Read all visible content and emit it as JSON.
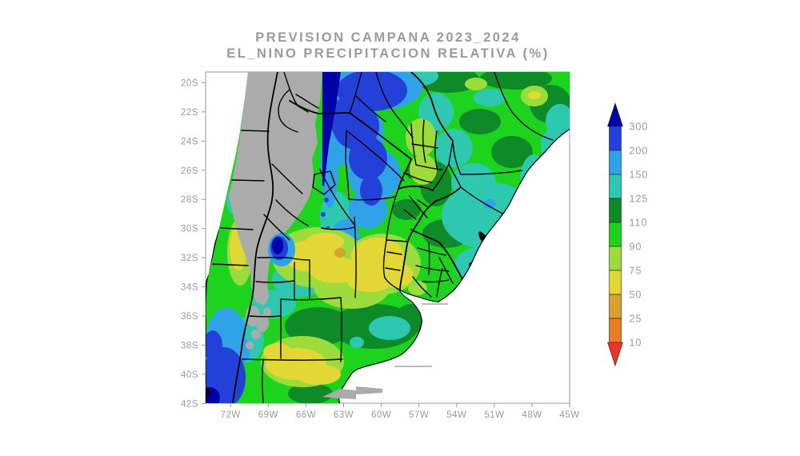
{
  "title": {
    "line1": "PREVISION CAMPANA 2023_2024",
    "line2": "EL_NINO PRECIPITACION RELATIVA (%)"
  },
  "axes": {
    "x_ticks": [
      "72W",
      "69W",
      "66W",
      "63W",
      "60W",
      "57W",
      "54W",
      "51W",
      "48W",
      "45W"
    ],
    "y_ticks": [
      "20S",
      "22S",
      "24S",
      "26S",
      "28S",
      "30S",
      "32S",
      "34S",
      "36S",
      "38S",
      "40S",
      "42S"
    ]
  },
  "colorbar": {
    "unit": "%",
    "labels": [
      "300",
      "200",
      "150",
      "125",
      "110",
      "90",
      "75",
      "50",
      "25",
      "10"
    ],
    "arrow_top_color": "#0000A8",
    "segment_colors": [
      "#2341D9",
      "#30A2EA",
      "#2EC8B0",
      "#0F8A28",
      "#1DD31D",
      "#9BDB3B",
      "#E2D735",
      "#D9A02B",
      "#EC7C22"
    ],
    "arrow_bottom_color": "#E9352A"
  },
  "palette": {
    "navy": "#0000A8",
    "royal": "#2341D9",
    "lightblue": "#30A2EA",
    "cyan": "#2EC8B0",
    "darkgreen": "#0F8A28",
    "green": "#1DD31D",
    "lightgreen": "#9BDB3B",
    "yellow": "#E2D735",
    "mustard": "#D9A02B",
    "orange": "#EC7C22",
    "red": "#E9352A",
    "nodata_gray": "#ABABAB",
    "frame_gray": "#9a9a9a",
    "label_gray": "#999999",
    "border_black": "#000000",
    "ocean_white": "#FFFFFF"
  }
}
